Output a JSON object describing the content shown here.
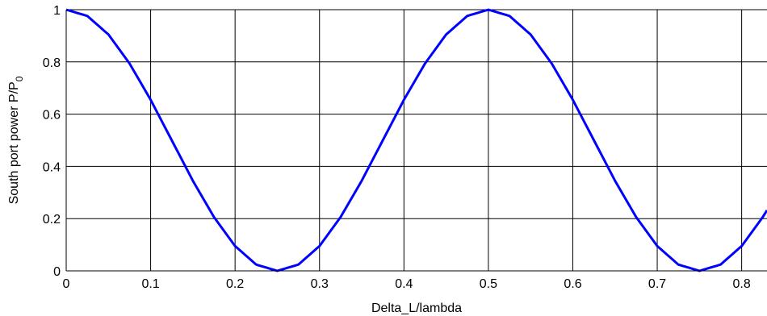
{
  "chart_data": {
    "type": "line",
    "title": "",
    "xlabel": "Delta_L/lambda",
    "ylabel": {
      "main": "South port power P/P",
      "subscript": "0"
    },
    "xlim": [
      0,
      0.83
    ],
    "ylim": [
      0,
      1
    ],
    "x_ticks": [
      0,
      0.1,
      0.2,
      0.3,
      0.4,
      0.5,
      0.6,
      0.7,
      0.8
    ],
    "x_tick_labels": [
      "0",
      "0.1",
      "0.2",
      "0.3",
      "0.4",
      "0.5",
      "0.6",
      "0.7",
      "0.8"
    ],
    "y_ticks": [
      0,
      0.2,
      0.4,
      0.6,
      0.8,
      1
    ],
    "y_tick_labels": [
      "0",
      "0.2",
      "0.4",
      "0.6",
      "0.8",
      "1"
    ],
    "grid": true,
    "line_color": "#0000ff",
    "series": [
      {
        "x": [
          0,
          0.025,
          0.05,
          0.075,
          0.1,
          0.125,
          0.15,
          0.175,
          0.2,
          0.225,
          0.25,
          0.275,
          0.3,
          0.325,
          0.35,
          0.375,
          0.4,
          0.425,
          0.45,
          0.475,
          0.5,
          0.525,
          0.55,
          0.575,
          0.6,
          0.625,
          0.65,
          0.675,
          0.7,
          0.725,
          0.75,
          0.775,
          0.8,
          0.825,
          0.83
        ],
        "y": [
          1,
          0.976,
          0.905,
          0.794,
          0.655,
          0.5,
          0.345,
          0.206,
          0.095,
          0.024,
          0,
          0.024,
          0.095,
          0.206,
          0.345,
          0.5,
          0.655,
          0.794,
          0.905,
          0.976,
          1,
          0.976,
          0.905,
          0.794,
          0.655,
          0.5,
          0.345,
          0.206,
          0.095,
          0.024,
          0,
          0.024,
          0.095,
          0.206,
          0.232
        ]
      }
    ]
  }
}
